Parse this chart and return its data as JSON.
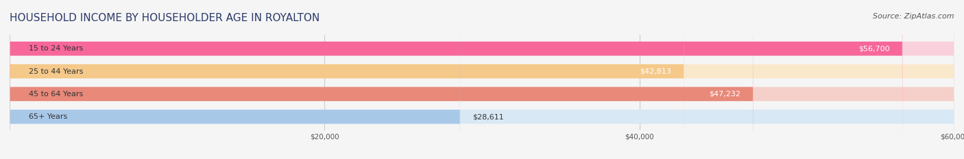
{
  "title": "HOUSEHOLD INCOME BY HOUSEHOLDER AGE IN ROYALTON",
  "source": "Source: ZipAtlas.com",
  "categories": [
    "15 to 24 Years",
    "25 to 44 Years",
    "45 to 64 Years",
    "65+ Years"
  ],
  "values": [
    56700,
    42813,
    47232,
    28611
  ],
  "bar_colors": [
    "#F7679A",
    "#F5C98A",
    "#E8897A",
    "#A8C8E8"
  ],
  "bar_bg_colors": [
    "#FAD0DC",
    "#FAE8CC",
    "#F5D0CA",
    "#D8E8F5"
  ],
  "value_labels": [
    "$56,700",
    "$42,813",
    "$47,232",
    "$28,611"
  ],
  "xlim": [
    0,
    60000
  ],
  "xticks": [
    20000,
    40000,
    60000
  ],
  "xticklabels": [
    "$20,000",
    "$40,000",
    "$60,000"
  ],
  "title_color": "#2B3A6B",
  "title_fontsize": 11,
  "source_fontsize": 8,
  "label_fontsize": 8,
  "value_fontsize": 8,
  "background_color": "#F5F5F5"
}
